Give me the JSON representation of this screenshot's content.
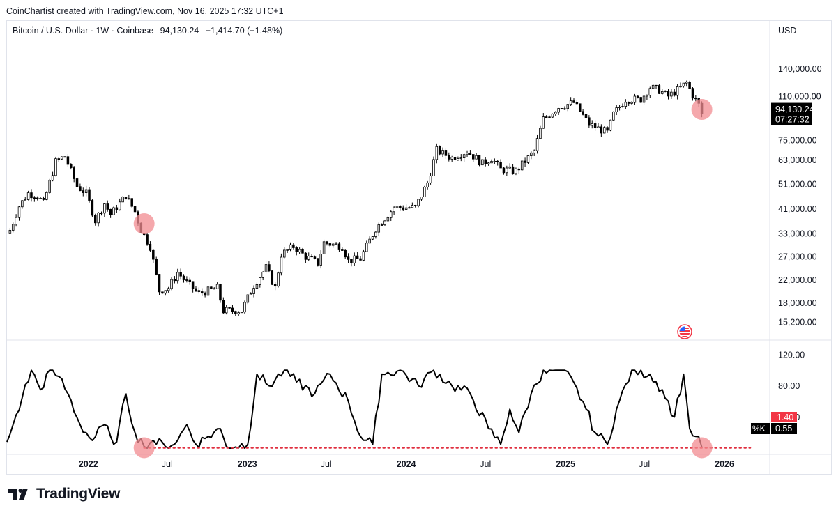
{
  "header": {
    "attribution": "CoinChartist created with TradingView.com, Nov 16, 2025 17:32 UTC+1"
  },
  "legend": {
    "symbol": "Bitcoin / U.S. Dollar · 1W · Coinbase",
    "close": "94,130.24",
    "change": "−1,414.70 (−1.48%)"
  },
  "price_axis": {
    "currency": "USD",
    "last_price": "94,130.24",
    "countdown": "07:27:32"
  },
  "stoch_axis": {
    "value_red": "1.40",
    "value_k": "0.55",
    "k_label": "%K"
  },
  "footer": {
    "brand": "TradingView"
  },
  "colors": {
    "candle": "#000000",
    "highlight": "#f28b90",
    "dotted_line": "#e03040",
    "stoch_red_badge": "#f23645",
    "label_black": "#000000"
  },
  "chart_data": [
    {
      "type": "candlestick",
      "title": "",
      "scale": "log",
      "y_ticks": [
        "140,000.00",
        "110,000.00",
        "75,000.00",
        "63,000.00",
        "51,000.00",
        "41,000.00",
        "33,000.00",
        "27,000.00",
        "22,000.00",
        "18,000.00",
        "15,200.00"
      ],
      "y_tick_values": [
        140000,
        110000,
        75000,
        63000,
        51000,
        41000,
        33000,
        27000,
        22000,
        18000,
        15200
      ],
      "x_ticks": [
        {
          "label": "2022",
          "date": "2022-01-01",
          "bold": true
        },
        {
          "label": "Jul",
          "date": "2022-07-01",
          "bold": false
        },
        {
          "label": "2023",
          "date": "2023-01-01",
          "bold": true
        },
        {
          "label": "Jul",
          "date": "2023-07-01",
          "bold": false
        },
        {
          "label": "2024",
          "date": "2024-01-01",
          "bold": true
        },
        {
          "label": "Jul",
          "date": "2024-07-01",
          "bold": false
        },
        {
          "label": "2025",
          "date": "2025-01-01",
          "bold": true
        },
        {
          "label": "Jul",
          "date": "2025-07-01",
          "bold": false
        },
        {
          "label": "2026",
          "date": "2026-01-01",
          "bold": true
        }
      ],
      "x_range": [
        "2021-06-28",
        "2026-04-15"
      ],
      "ylim": [
        13800,
        175000
      ],
      "last_close": 94130.24,
      "anchors": [
        [
          "2021-07-05",
          34000
        ],
        [
          "2021-07-26",
          42000
        ],
        [
          "2021-08-16",
          47000
        ],
        [
          "2021-09-06",
          46000
        ],
        [
          "2021-09-20",
          43000
        ],
        [
          "2021-10-18",
          62000
        ],
        [
          "2021-11-08",
          65000
        ],
        [
          "2021-11-22",
          57000
        ],
        [
          "2021-12-06",
          50000
        ],
        [
          "2021-12-27",
          47000
        ],
        [
          "2022-01-17",
          37000
        ],
        [
          "2022-02-07",
          43000
        ],
        [
          "2022-02-21",
          39000
        ],
        [
          "2022-03-28",
          46000
        ],
        [
          "2022-04-18",
          40000
        ],
        [
          "2022-05-02",
          34000
        ],
        [
          "2022-05-23",
          29500
        ],
        [
          "2022-06-13",
          20000
        ],
        [
          "2022-07-04",
          20500
        ],
        [
          "2022-07-25",
          23500
        ],
        [
          "2022-08-15",
          21500
        ],
        [
          "2022-09-12",
          19500
        ],
        [
          "2022-10-24",
          20500
        ],
        [
          "2022-11-07",
          16800
        ],
        [
          "2022-12-19",
          16800
        ],
        [
          "2023-01-16",
          21000
        ],
        [
          "2023-02-13",
          24500
        ],
        [
          "2023-03-06",
          20500
        ],
        [
          "2023-03-20",
          27500
        ],
        [
          "2023-04-17",
          29500
        ],
        [
          "2023-05-15",
          27000
        ],
        [
          "2023-06-12",
          25500
        ],
        [
          "2023-06-26",
          30500
        ],
        [
          "2023-08-07",
          29500
        ],
        [
          "2023-08-21",
          26000
        ],
        [
          "2023-09-18",
          26500
        ],
        [
          "2023-10-23",
          34500
        ],
        [
          "2023-12-04",
          41500
        ],
        [
          "2024-01-22",
          41500
        ],
        [
          "2024-02-19",
          51500
        ],
        [
          "2024-03-11",
          68500
        ],
        [
          "2024-04-15",
          64000
        ],
        [
          "2024-05-20",
          68000
        ],
        [
          "2024-06-24",
          61000
        ],
        [
          "2024-07-15",
          64000
        ],
        [
          "2024-08-05",
          58000
        ],
        [
          "2024-09-09",
          57000
        ],
        [
          "2024-10-21",
          68000
        ],
        [
          "2024-11-11",
          90000
        ],
        [
          "2024-12-16",
          100000
        ],
        [
          "2025-01-20",
          104000
        ],
        [
          "2025-02-24",
          86000
        ],
        [
          "2025-04-07",
          80000
        ],
        [
          "2025-04-21",
          94000
        ],
        [
          "2025-05-19",
          107000
        ],
        [
          "2025-06-23",
          107000
        ],
        [
          "2025-07-14",
          119000
        ],
        [
          "2025-08-04",
          116000
        ],
        [
          "2025-08-25",
          110000
        ],
        [
          "2025-09-15",
          116000
        ],
        [
          "2025-10-06",
          124000
        ],
        [
          "2025-10-20",
          111000
        ],
        [
          "2025-11-03",
          102000
        ],
        [
          "2025-11-10",
          94130
        ]
      ]
    },
    {
      "type": "line",
      "name": "%K",
      "title": "",
      "y_ticks": [
        "120.00",
        "80.00",
        "40.00"
      ],
      "y_tick_values": [
        120,
        80,
        40
      ],
      "ylim": [
        -8,
        128
      ],
      "last_values": [
        1.4,
        0.55
      ],
      "anchors": [
        [
          "2021-06-28",
          8
        ],
        [
          "2021-07-12",
          30
        ],
        [
          "2021-08-02",
          65
        ],
        [
          "2021-08-23",
          100
        ],
        [
          "2021-09-13",
          75
        ],
        [
          "2021-10-04",
          100
        ],
        [
          "2021-10-25",
          92
        ],
        [
          "2021-11-15",
          70
        ],
        [
          "2021-12-13",
          30
        ],
        [
          "2022-01-10",
          10
        ],
        [
          "2022-02-07",
          30
        ],
        [
          "2022-02-21",
          15
        ],
        [
          "2022-03-07",
          8
        ],
        [
          "2022-03-28",
          70
        ],
        [
          "2022-04-18",
          20
        ],
        [
          "2022-05-09",
          2
        ],
        [
          "2022-05-30",
          10
        ],
        [
          "2022-06-27",
          2
        ],
        [
          "2022-07-25",
          10
        ],
        [
          "2022-08-15",
          30
        ],
        [
          "2022-09-05",
          5
        ],
        [
          "2022-10-03",
          15
        ],
        [
          "2022-10-31",
          25
        ],
        [
          "2022-11-14",
          2
        ],
        [
          "2023-01-02",
          5
        ],
        [
          "2023-01-23",
          95
        ],
        [
          "2023-02-20",
          80
        ],
        [
          "2023-03-27",
          100
        ],
        [
          "2023-04-24",
          85
        ],
        [
          "2023-06-05",
          70
        ],
        [
          "2023-07-10",
          95
        ],
        [
          "2023-08-21",
          60
        ],
        [
          "2023-09-18",
          15
        ],
        [
          "2023-10-16",
          5
        ],
        [
          "2023-11-06",
          95
        ],
        [
          "2023-12-18",
          100
        ],
        [
          "2024-01-29",
          80
        ],
        [
          "2024-03-04",
          100
        ],
        [
          "2024-04-15",
          80
        ],
        [
          "2024-05-27",
          70
        ],
        [
          "2024-07-08",
          25
        ],
        [
          "2024-08-05",
          5
        ],
        [
          "2024-08-26",
          50
        ],
        [
          "2024-09-16",
          20
        ],
        [
          "2024-10-14",
          70
        ],
        [
          "2024-11-11",
          100
        ],
        [
          "2024-12-30",
          100
        ],
        [
          "2025-02-10",
          60
        ],
        [
          "2025-03-10",
          20
        ],
        [
          "2025-04-07",
          5
        ],
        [
          "2025-04-28",
          50
        ],
        [
          "2025-06-02",
          100
        ],
        [
          "2025-07-14",
          95
        ],
        [
          "2025-08-11",
          75
        ],
        [
          "2025-09-08",
          40
        ],
        [
          "2025-09-29",
          95
        ],
        [
          "2025-10-13",
          25
        ],
        [
          "2025-10-27",
          15
        ],
        [
          "2025-11-10",
          1
        ]
      ]
    }
  ]
}
